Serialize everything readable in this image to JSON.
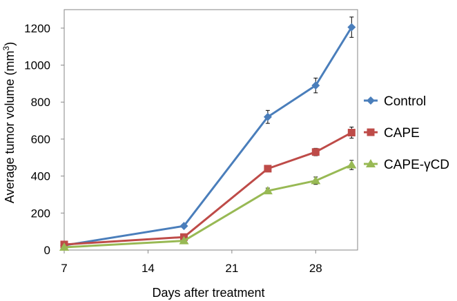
{
  "chart_data": {
    "type": "line",
    "xlabel": "Days after treatment",
    "ylabel": "Average tumor volume (mm",
    "ylabel_sup": "3",
    "ylabel_close": ")",
    "xlim": [
      7,
      31.5
    ],
    "ylim": [
      0,
      1300
    ],
    "xticks": [
      7,
      14,
      21,
      28
    ],
    "yticks": [
      0,
      200,
      400,
      600,
      800,
      1000,
      1200
    ],
    "grid": false,
    "legend_position": "right",
    "series": [
      {
        "name": "Control",
        "color": "#4a7ebb",
        "marker": "diamond",
        "x": [
          7,
          17,
          24,
          28,
          31
        ],
        "y": [
          25,
          130,
          720,
          890,
          1205
        ],
        "err": [
          0,
          0,
          35,
          40,
          55
        ]
      },
      {
        "name": "CAPE",
        "color": "#be4b48",
        "marker": "square",
        "x": [
          7,
          17,
          24,
          28,
          31
        ],
        "y": [
          30,
          70,
          440,
          530,
          635
        ],
        "err": [
          0,
          0,
          0,
          20,
          30
        ]
      },
      {
        "name": "CAPE-γCD",
        "color": "#98b954",
        "marker": "triangle",
        "x": [
          7,
          17,
          24,
          28,
          31
        ],
        "y": [
          15,
          50,
          320,
          375,
          460
        ],
        "err": [
          0,
          0,
          15,
          20,
          25
        ]
      }
    ]
  }
}
